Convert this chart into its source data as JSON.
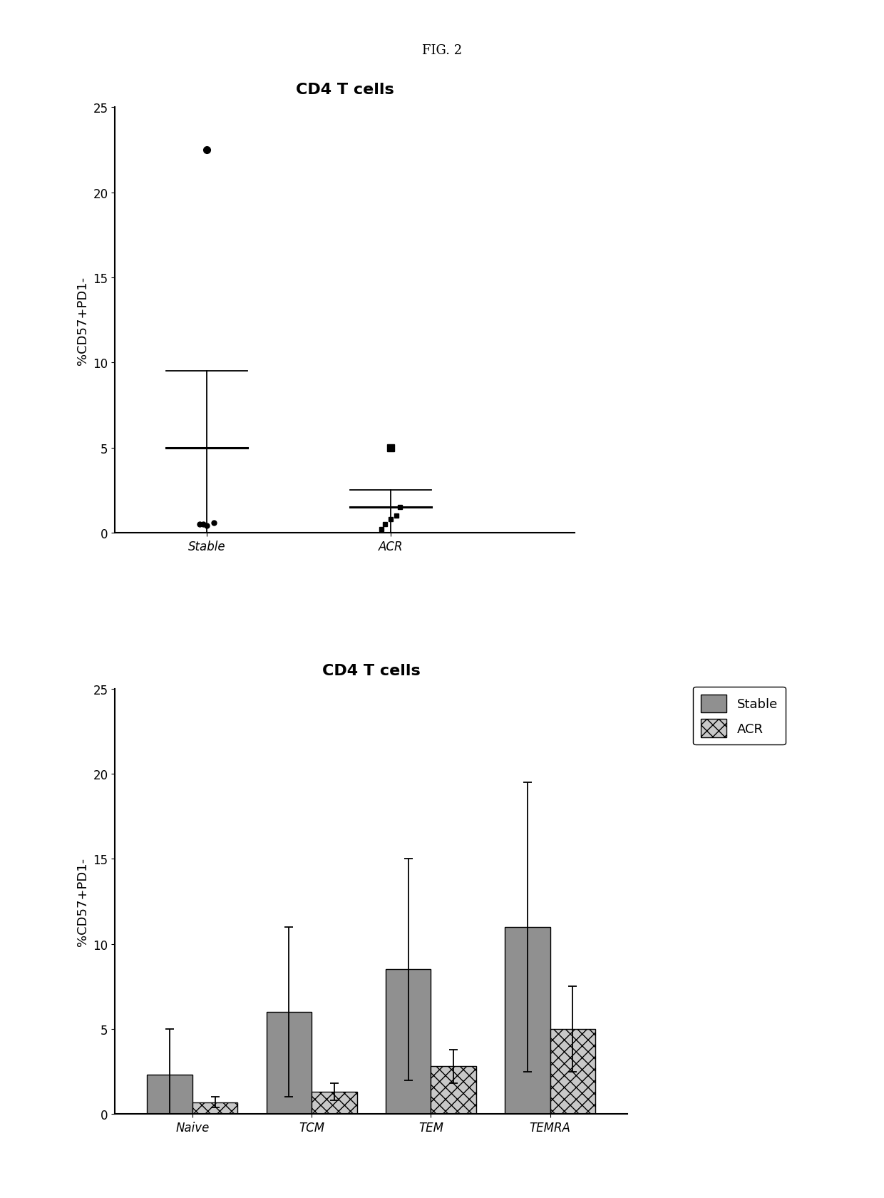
{
  "fig_label": "FIG. 2",
  "top_panel": {
    "title": "CD4 T cells",
    "ylabel": "%CD57+PD1-",
    "ylim": [
      0,
      25
    ],
    "yticks": [
      0,
      5,
      10,
      15,
      20,
      25
    ],
    "groups": [
      "Stable",
      "ACR"
    ],
    "stable_points": [
      0.5,
      0.4,
      0.6,
      0.5,
      22.5
    ],
    "stable_median": 5.0,
    "stable_err_low": 0.0,
    "stable_err_high": 9.5,
    "acr_points": [
      0.2,
      0.5,
      0.8,
      1.0,
      1.5,
      5.0
    ],
    "acr_median": 1.5,
    "acr_err_low": 0.0,
    "acr_err_high": 2.5
  },
  "bottom_panel": {
    "title": "CD4 T cells",
    "ylabel": "%CD57+PD1-",
    "ylim": [
      0,
      25
    ],
    "yticks": [
      0,
      5,
      10,
      15,
      20,
      25
    ],
    "categories": [
      "Naive",
      "TCM",
      "TEM",
      "TEMRA"
    ],
    "stable_values": [
      2.3,
      6.0,
      8.5,
      11.0
    ],
    "stable_errors": [
      2.7,
      5.0,
      6.5,
      8.5
    ],
    "acr_values": [
      0.7,
      1.3,
      2.8,
      5.0
    ],
    "acr_errors": [
      0.3,
      0.5,
      1.0,
      2.5
    ],
    "stable_color": "#909090",
    "acr_color": "#c8c8c8",
    "legend_labels": [
      "Stable",
      "ACR"
    ]
  },
  "background_color": "#ffffff",
  "text_color": "#000000"
}
